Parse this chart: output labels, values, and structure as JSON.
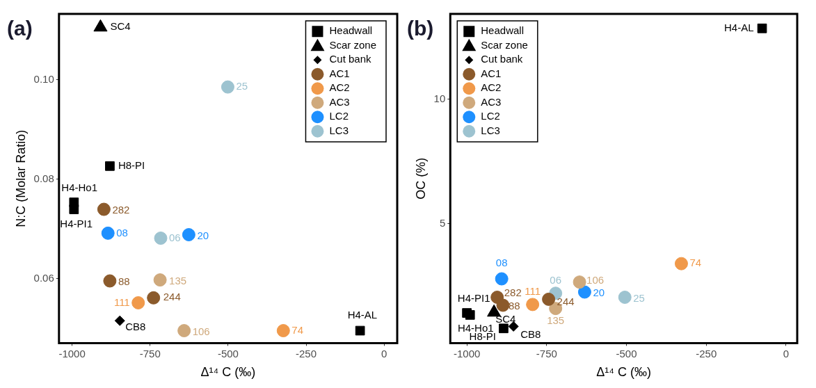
{
  "chart_data": [
    {
      "type": "scatter",
      "title": "(a)",
      "xlabel": "Δ¹⁴ C (‰)",
      "ylabel": "N:C (Molar Ratio)",
      "xlim": [
        -1042,
        42
      ],
      "ylim": [
        0.047,
        0.1132
      ],
      "xticks": [
        -1000,
        -750,
        -500,
        -250,
        0
      ],
      "yticks": [
        0.06,
        0.08,
        {
          "value": 0.1,
          "label": "0.10"
        }
      ],
      "grid": false,
      "legend": "top right",
      "series": [
        {
          "name": "Headwall",
          "color": "#000000",
          "marker": "square",
          "x": [
            -879,
            -994,
            -994,
            -77
          ],
          "values": [
            0.0826,
            0.0753,
            0.0739,
            0.0495
          ]
        },
        {
          "name": "Scar zone",
          "color": "#000000",
          "marker": "triangle",
          "x": [
            -909
          ],
          "values": [
            0.1105
          ]
        },
        {
          "name": "Cut bank",
          "color": "#000000",
          "marker": "diamond",
          "x": [
            -847
          ],
          "values": [
            0.0515
          ]
        },
        {
          "name": "AC1",
          "color": "#8b5a2b",
          "marker": "circle",
          "x": [
            -898,
            -879,
            -739
          ],
          "values": [
            0.0739,
            0.0595,
            0.0561
          ]
        },
        {
          "name": "AC2",
          "color": "#f0994a",
          "marker": "circle",
          "x": [
            -788,
            -323
          ],
          "values": [
            0.0551,
            0.0495
          ]
        },
        {
          "name": "AC3",
          "color": "#cfa97c",
          "marker": "circle",
          "x": [
            -718,
            -641
          ],
          "values": [
            0.0597,
            0.0495
          ]
        },
        {
          "name": "LC2",
          "color": "#1e90ff",
          "marker": "circle",
          "x": [
            -885,
            -626
          ],
          "values": [
            0.0691,
            0.0688
          ]
        },
        {
          "name": "LC3",
          "color": "#9dc3d0",
          "marker": "circle",
          "x": [
            -501,
            -716
          ],
          "values": [
            0.0985,
            0.0681
          ]
        }
      ],
      "annotations": [
        {
          "text": "H8-PI",
          "x": -879,
          "y": 0.0826
        },
        {
          "text": "H4-Ho1",
          "x": -994,
          "y": 0.0753
        },
        {
          "text": "H4-PI1",
          "x": -994,
          "y": 0.0739
        },
        {
          "text": "H4-AL",
          "x": -77,
          "y": 0.0495
        },
        {
          "text": "SC4",
          "x": -909,
          "y": 0.1105
        },
        {
          "text": "CB8",
          "x": -847,
          "y": 0.0515
        },
        {
          "text": "282",
          "x": -898,
          "y": 0.0739
        },
        {
          "text": "88",
          "x": -879,
          "y": 0.0595
        },
        {
          "text": "244",
          "x": -739,
          "y": 0.0561
        },
        {
          "text": "111",
          "x": -788,
          "y": 0.0551
        },
        {
          "text": "74",
          "x": -323,
          "y": 0.0495
        },
        {
          "text": "135",
          "x": -718,
          "y": 0.0597
        },
        {
          "text": "106",
          "x": -641,
          "y": 0.0495
        },
        {
          "text": "08",
          "x": -885,
          "y": 0.0691
        },
        {
          "text": "20",
          "x": -626,
          "y": 0.0688
        },
        {
          "text": "25",
          "x": -501,
          "y": 0.0985
        },
        {
          "text": "06",
          "x": -716,
          "y": 0.0681
        }
      ]
    },
    {
      "type": "scatter",
      "title": "(b)",
      "xlabel": "Δ¹⁴ C (‰)",
      "ylabel": "OC (%)",
      "xlim": [
        -1052,
        35
      ],
      "ylim": [
        0.21,
        13.43
      ],
      "xticks": [
        -1000,
        -750,
        -500,
        -250,
        0
      ],
      "yticks": [
        5,
        10
      ],
      "grid": false,
      "legend": "top left",
      "series": [
        {
          "name": "Headwall",
          "color": "#000000",
          "marker": "square",
          "x": [
            -885,
            -990,
            -1000,
            -75
          ],
          "values": [
            0.8,
            1.34,
            1.42,
            12.85
          ]
        },
        {
          "name": "Scar zone",
          "color": "#000000",
          "marker": "triangle",
          "x": [
            -915
          ],
          "values": [
            1.44
          ]
        },
        {
          "name": "Cut bank",
          "color": "#000000",
          "marker": "diamond",
          "x": [
            -854
          ],
          "values": [
            0.88
          ]
        },
        {
          "name": "AC1",
          "color": "#8b5a2b",
          "marker": "circle",
          "x": [
            -905,
            -887,
            -744
          ],
          "values": [
            2.05,
            1.73,
            1.97
          ]
        },
        {
          "name": "AC2",
          "color": "#f0994a",
          "marker": "circle",
          "x": [
            -794,
            -328
          ],
          "values": [
            1.76,
            3.4
          ]
        },
        {
          "name": "AC3",
          "color": "#cfa97c",
          "marker": "circle",
          "x": [
            -722,
            -647
          ],
          "values": [
            1.6,
            2.66
          ]
        },
        {
          "name": "LC2",
          "color": "#1e90ff",
          "marker": "circle",
          "x": [
            -891,
            -631
          ],
          "values": [
            2.79,
            2.26
          ]
        },
        {
          "name": "LC3",
          "color": "#9dc3d0",
          "marker": "circle",
          "x": [
            -505,
            -722
          ],
          "values": [
            2.05,
            2.21
          ]
        }
      ],
      "annotations": [
        {
          "text": "H8-PI",
          "x": -885,
          "y": 0.8
        },
        {
          "text": "H4-Ho1",
          "x": -990,
          "y": 1.34
        },
        {
          "text": "H4-PI1",
          "x": -1000,
          "y": 1.42
        },
        {
          "text": "H4-AL",
          "x": -75,
          "y": 12.85
        },
        {
          "text": "SC4",
          "x": -915,
          "y": 1.44
        },
        {
          "text": "CB8",
          "x": -854,
          "y": 0.88
        },
        {
          "text": "282",
          "x": -905,
          "y": 2.05
        },
        {
          "text": "88",
          "x": -887,
          "y": 1.73
        },
        {
          "text": "244",
          "x": -744,
          "y": 1.97
        },
        {
          "text": "111",
          "x": -794,
          "y": 1.76
        },
        {
          "text": "74",
          "x": -328,
          "y": 3.4
        },
        {
          "text": "135",
          "x": -722,
          "y": 1.6
        },
        {
          "text": "106",
          "x": -647,
          "y": 2.66
        },
        {
          "text": "08",
          "x": -891,
          "y": 2.79
        },
        {
          "text": "20",
          "x": -631,
          "y": 2.26
        },
        {
          "text": "25",
          "x": -505,
          "y": 2.05
        },
        {
          "text": "06",
          "x": -722,
          "y": 2.21
        }
      ]
    }
  ]
}
